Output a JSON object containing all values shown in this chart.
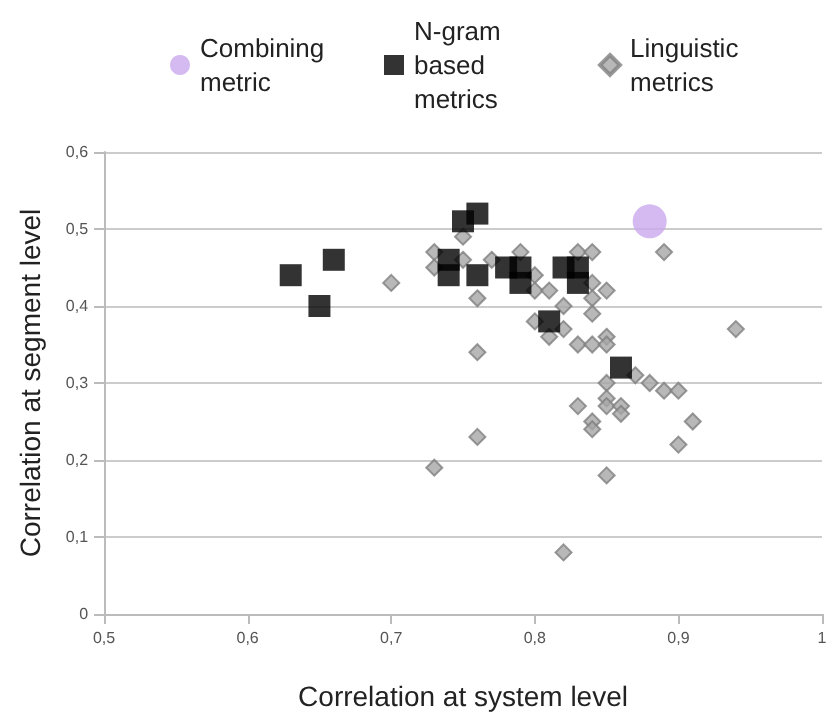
{
  "chart_data": {
    "type": "scatter",
    "xlabel": "Correlation at system level",
    "ylabel": "Correlation at segment level",
    "xlim": [
      0.5,
      1
    ],
    "xticks": [
      {
        "value": 0.5,
        "label": "0,5"
      },
      {
        "value": 0.6,
        "label": "0,6"
      },
      {
        "value": 0.7,
        "label": "0,7"
      },
      {
        "value": 0.8,
        "label": "0,8"
      },
      {
        "value": 0.9,
        "label": "0,9"
      },
      1
    ],
    "ylim": [
      0,
      0.6
    ],
    "yticks": [
      0,
      {
        "value": 0.1,
        "label": "0,1"
      },
      {
        "value": 0.2,
        "label": "0,2"
      },
      {
        "value": 0.3,
        "label": "0,3"
      },
      {
        "value": 0.4,
        "label": "0,4"
      },
      {
        "value": 0.5,
        "label": "0,5"
      },
      {
        "value": 0.6,
        "label": "0,6"
      }
    ],
    "grid": "y",
    "legend": "top",
    "series": [
      {
        "name": "Linguistic metrics",
        "color": "#a6a6a6",
        "marker": "diamond",
        "x": [
          0.7,
          0.73,
          0.73,
          0.74,
          0.75,
          0.75,
          0.77,
          0.78,
          0.79,
          0.8,
          0.8,
          0.81,
          0.8,
          0.82,
          0.81,
          0.82,
          0.83,
          0.84,
          0.84,
          0.84,
          0.85,
          0.84,
          0.85,
          0.83,
          0.84,
          0.85,
          0.87,
          0.88,
          0.89,
          0.9,
          0.85,
          0.85,
          0.85,
          0.83,
          0.84,
          0.84,
          0.86,
          0.86,
          0.91,
          0.9,
          0.85,
          0.82,
          0.76,
          0.76,
          0.73,
          0.94,
          0.89,
          0.76
        ],
        "values": [
          0.43,
          0.47,
          0.45,
          null,
          0.46,
          0.49,
          0.46,
          null,
          0.47,
          0.44,
          0.42,
          0.42,
          0.38,
          0.37,
          0.36,
          0.4,
          0.47,
          0.47,
          0.43,
          0.41,
          0.42,
          0.39,
          0.36,
          0.35,
          0.35,
          0.35,
          0.31,
          0.3,
          0.29,
          0.29,
          0.3,
          0.28,
          0.27,
          0.27,
          0.25,
          0.24,
          0.27,
          0.26,
          0.25,
          0.22,
          0.18,
          0.08,
          0.23,
          0.34,
          0.19,
          0.37,
          0.47,
          0.41
        ]
      },
      {
        "name": "N-gram based metrics",
        "color": "#000000",
        "marker": "square",
        "x": [
          0.63,
          0.65,
          0.66,
          0.74,
          0.75,
          0.76,
          0.76,
          0.78,
          0.79,
          0.79,
          0.81,
          0.82,
          0.83,
          0.83,
          0.86,
          0.74
        ],
        "values": [
          0.44,
          0.4,
          0.46,
          0.46,
          0.51,
          0.52,
          0.44,
          0.45,
          0.45,
          0.43,
          0.38,
          0.45,
          0.45,
          0.43,
          0.32,
          0.44
        ]
      },
      {
        "name": "Combining metric",
        "color": "#c9a9ec",
        "marker": "circle",
        "x": [
          0.88
        ],
        "values": [
          0.51
        ]
      }
    ]
  }
}
